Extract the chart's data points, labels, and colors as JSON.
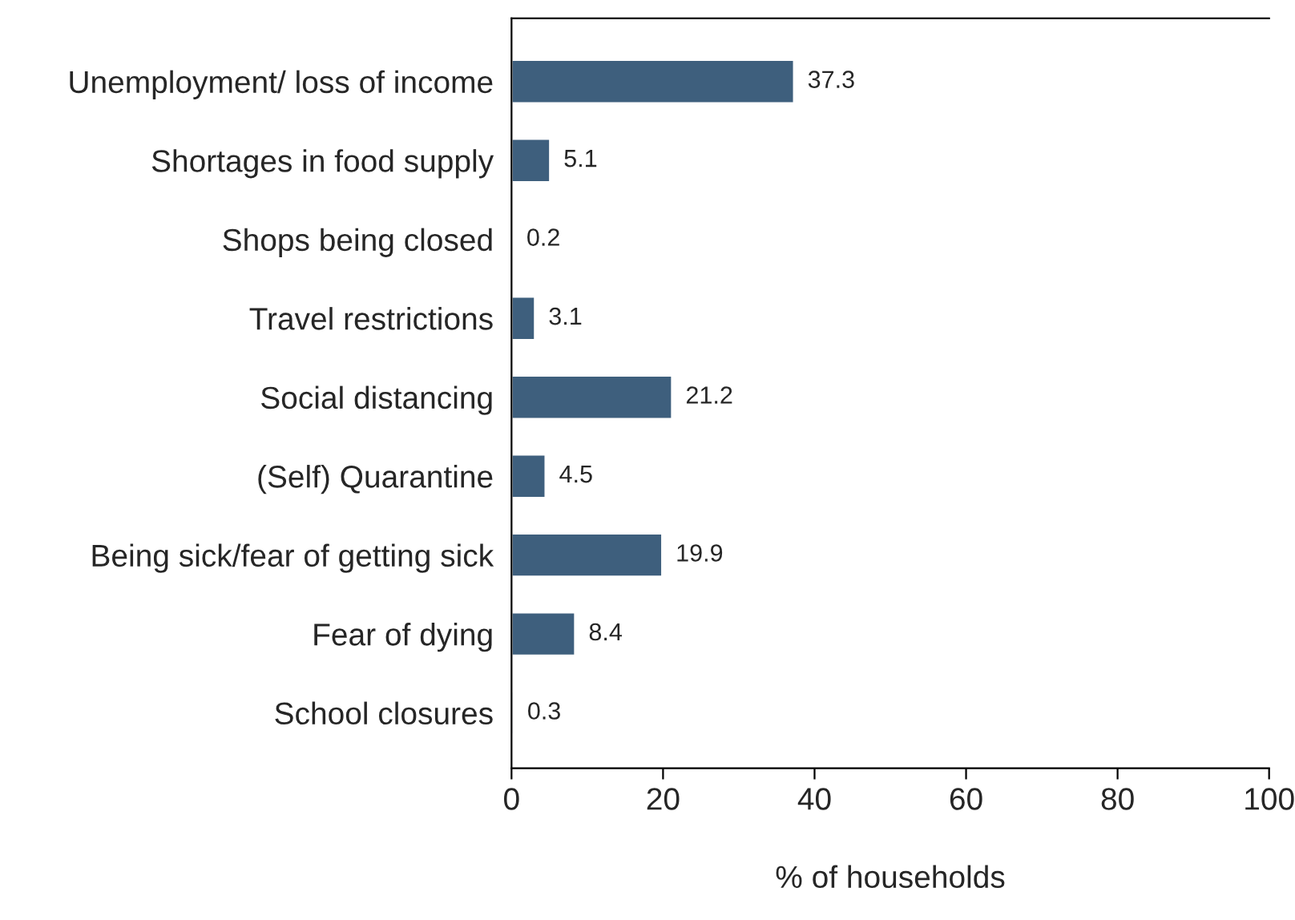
{
  "chart_data": {
    "type": "bar",
    "orientation": "horizontal",
    "xlabel": "% of households",
    "categories": [
      "Unemployment/ loss of income",
      "Shortages in food supply",
      "Shops being closed",
      "Travel restrictions",
      "Social distancing",
      "(Self) Quarantine",
      "Being sick/fear of getting sick",
      "Fear of dying",
      "School closures"
    ],
    "values": [
      37.3,
      5.1,
      0.2,
      3.1,
      21.2,
      4.5,
      19.9,
      8.4,
      0.3
    ],
    "color": "#3e5f7d",
    "data_labels": true,
    "xlim": [
      0,
      100
    ],
    "xticks": [
      0,
      20,
      40,
      60,
      80,
      100
    ],
    "grid": false,
    "legend": false
  }
}
